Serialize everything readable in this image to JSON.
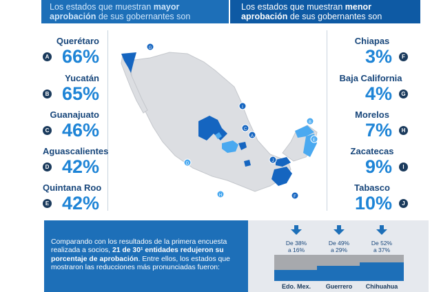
{
  "banners": {
    "left": {
      "line1_pre": "Los estados que muestran ",
      "line1_bold": "mayor",
      "line2_bold": "aprobación",
      "line2_post": " de sus gobernantes son"
    },
    "right": {
      "line1_pre": "Los estados que muestran ",
      "line1_bold": "menor",
      "line2_bold": "aprobación",
      "line2_post": " de sus gobernantes son"
    }
  },
  "highest": [
    {
      "letter": "A",
      "name": "Querétaro",
      "value": "66%"
    },
    {
      "letter": "B",
      "name": "Yucatán",
      "value": "65%"
    },
    {
      "letter": "C",
      "name": "Guanajuato",
      "value": "46%"
    },
    {
      "letter": "D",
      "name": "Aguascalientes",
      "value": "42%"
    },
    {
      "letter": "E",
      "name": "Quintana Roo",
      "value": "42%"
    }
  ],
  "lowest": [
    {
      "letter": "F",
      "name": "Chiapas",
      "value": "3%"
    },
    {
      "letter": "G",
      "name": "Baja California",
      "value": "4%"
    },
    {
      "letter": "H",
      "name": "Morelos",
      "value": "7%"
    },
    {
      "letter": "I",
      "name": "Zacatecas",
      "value": "9%"
    },
    {
      "letter": "J",
      "name": "Tabasco",
      "value": "10%"
    }
  ],
  "map_markers": [
    "G",
    "I",
    "C",
    "A",
    "D",
    "J",
    "B",
    "E",
    "H",
    "F"
  ],
  "footer": {
    "line1": "Comparando con los resultados de la primera encuesta",
    "line2_pre": "realizada a socios, ",
    "line2_bold": "21 de 30¹ entidades redujeron su",
    "line3_bold": "porcentaje de aprobación",
    "line3_post": ". Entre ellos, los estados que",
    "line4": "mostraron las reducciones más pronunciadas fueron:"
  },
  "comparisons": [
    {
      "from_label": "De 38%",
      "to_label": "a 16%",
      "name": "Edo. Mex.",
      "from": 38,
      "to": 16
    },
    {
      "from_label": "De 49%",
      "to_label": "a 29%",
      "name": "Guerrero",
      "from": 49,
      "to": 29
    },
    {
      "from_label": "De 52%",
      "to_label": "a 37%",
      "name": "Chihuahua",
      "from": 52,
      "to": 37
    }
  ],
  "colors": {
    "accent": "#1e84d6",
    "dark_blue": "#1d6fb8",
    "navy": "#16457a",
    "map_highlight": "#1565c0",
    "map_light": "#4aa9f0",
    "map_gray": "#dcdee2"
  }
}
